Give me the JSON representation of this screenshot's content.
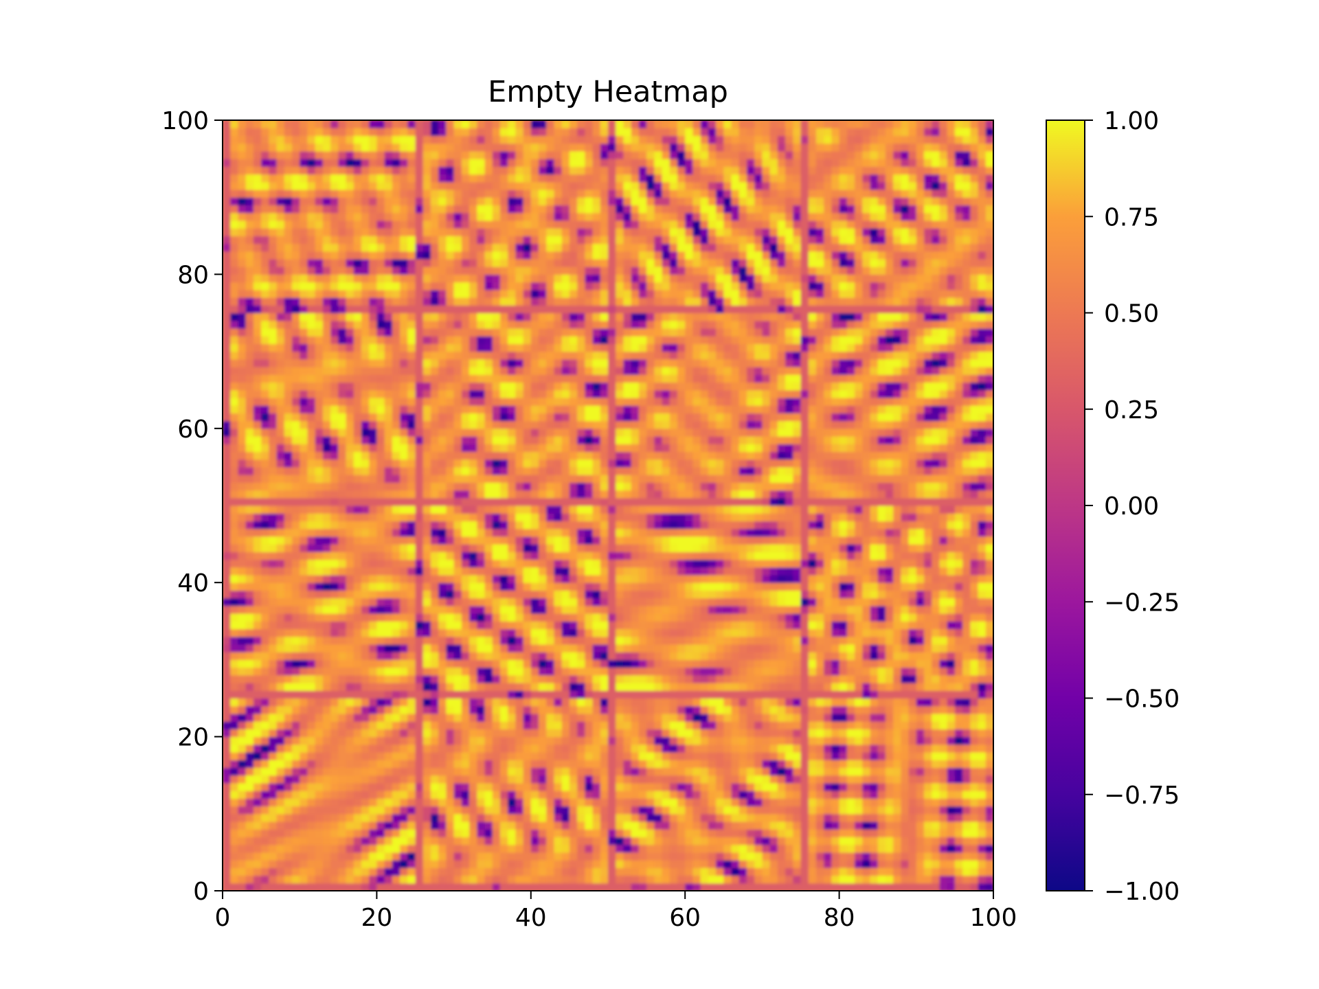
{
  "chart_data": {
    "type": "heatmap",
    "title": "Empty Heatmap",
    "xlabel": "",
    "ylabel": "",
    "xlim": [
      0,
      100
    ],
    "ylim": [
      0,
      100
    ],
    "x_ticks": [
      "0",
      "20",
      "40",
      "60",
      "80",
      "100"
    ],
    "y_ticks": [
      "0",
      "20",
      "40",
      "60",
      "80",
      "100"
    ],
    "grid": false,
    "colormap": "plasma",
    "color_range": [
      -1.0,
      1.0
    ],
    "colorbar_ticks": [
      "1.00",
      "0.75",
      "0.50",
      "0.25",
      "0.00",
      "−0.25",
      "−0.50",
      "−0.75",
      "−1.00"
    ],
    "colorbar_tick_values": [
      1.0,
      0.75,
      0.5,
      0.25,
      0.0,
      -0.25,
      -0.5,
      -0.75,
      -1.0
    ],
    "grid_size": [
      100,
      100
    ],
    "tile_blocks": [
      4,
      4
    ],
    "dominant_value_range": [
      0.35,
      0.9
    ],
    "colors": {
      "cmap_low": "#0d0887",
      "cmap_mid": "#cc4778",
      "cmap_high": "#f0f921",
      "dominant": "#f89540"
    }
  }
}
